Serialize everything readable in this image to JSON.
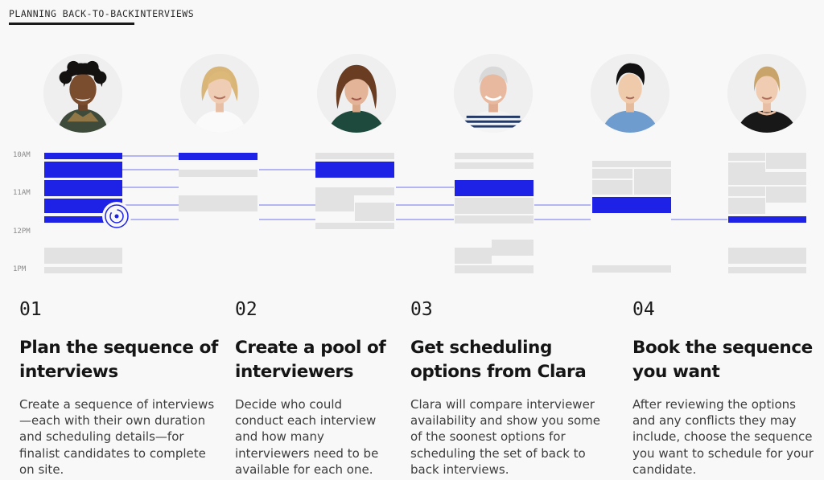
{
  "header": {
    "eyebrow_strong": "PLANNING BACK-TO-BACK",
    "eyebrow_rest": " INTERVIEWS"
  },
  "colors": {
    "accent": "#1e22e6",
    "slot_gray": "#e2e2e2",
    "connector": "#8b8ef0",
    "background": "#f7f8f7"
  },
  "timeline": {
    "time_labels": [
      "10AM",
      "11AM",
      "12PM",
      "1PM"
    ],
    "interviewers": [
      {
        "name": "interviewer-1",
        "icon": "person-curly-hair-avatar"
      },
      {
        "name": "interviewer-2",
        "icon": "person-blonde-avatar"
      },
      {
        "name": "interviewer-3",
        "icon": "person-brunette-avatar"
      },
      {
        "name": "interviewer-4",
        "icon": "person-grey-hair-avatar"
      },
      {
        "name": "interviewer-5",
        "icon": "person-dark-hair-avatar"
      },
      {
        "name": "interviewer-6",
        "icon": "person-short-blonde-avatar"
      }
    ],
    "sync_icon": "clara-sync-icon"
  },
  "steps": [
    {
      "number": "01",
      "title": "Plan the sequence of interviews",
      "description": "Create a sequence of interviews—each with their own duration and scheduling details—for finalist candidates to complete on site."
    },
    {
      "number": "02",
      "title": "Create a pool of interviewers",
      "description": "Decide who could conduct each interview and how many interviewers need to be available for each one."
    },
    {
      "number": "03",
      "title": "Get scheduling options from Clara",
      "description": "Clara will compare interviewer availability and show you some of the soonest options for scheduling the set of back to back interviews."
    },
    {
      "number": "04",
      "title": "Book the sequence you want",
      "description": "After reviewing the options and any conflicts they may include, choose the sequence you want to schedule for your candidate."
    }
  ]
}
